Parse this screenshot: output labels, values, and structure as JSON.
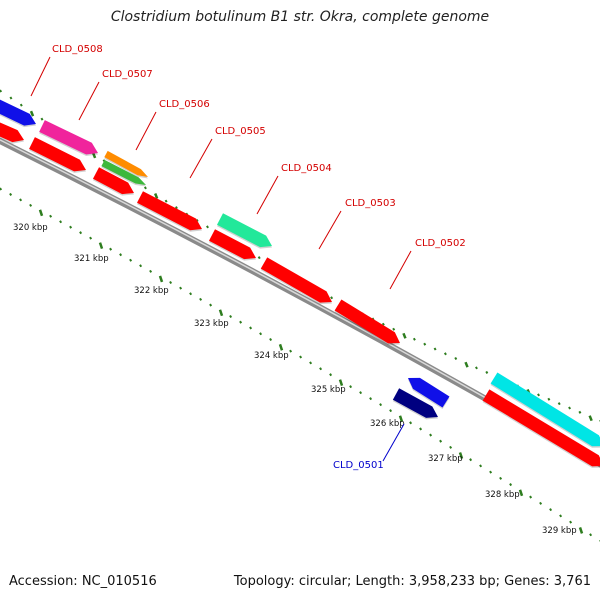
{
  "title": "Clostridium botulinum B1 str. Okra, complete genome",
  "footer": {
    "accession": "Accession: NC_010516",
    "summary": "Topology: circular; Length: 3,958,233 bp; Genes: 3,761"
  },
  "colors": {
    "backbone": "#8a8a8a",
    "tick": "#2e7d1f",
    "label_upper": "#d40000",
    "label_lower": "#0000cc",
    "scale_text": "#111111"
  },
  "scale_ticks": [
    {
      "label": "320 kbp"
    },
    {
      "label": "321 kbp"
    },
    {
      "label": "322 kbp"
    },
    {
      "label": "323 kbp"
    },
    {
      "label": "324 kbp"
    },
    {
      "label": "325 kbp"
    },
    {
      "label": "326 kbp"
    },
    {
      "label": "327 kbp"
    },
    {
      "label": "328 kbp"
    },
    {
      "label": "329 kbp"
    }
  ],
  "gene_labels": [
    {
      "label": "CLD_0508",
      "strand": "forward"
    },
    {
      "label": "CLD_0507",
      "strand": "forward"
    },
    {
      "label": "CLD_0506",
      "strand": "forward"
    },
    {
      "label": "CLD_0505",
      "strand": "forward"
    },
    {
      "label": "CLD_0504",
      "strand": "forward"
    },
    {
      "label": "CLD_0503",
      "strand": "forward"
    },
    {
      "label": "CLD_0502",
      "strand": "forward"
    },
    {
      "label": "CLD_0501",
      "strand": "reverse"
    }
  ],
  "features": [
    {
      "kind": "CDS",
      "color": "#ff0000"
    },
    {
      "kind": "CDS",
      "color": "#ff0000"
    },
    {
      "kind": "CDS",
      "color": "#ff0000"
    },
    {
      "kind": "CDS",
      "color": "#ff0000"
    },
    {
      "kind": "CDS",
      "color": "#ff0000"
    },
    {
      "kind": "CDS",
      "color": "#ff0000"
    },
    {
      "kind": "CDS",
      "color": "#ff0000"
    },
    {
      "kind": "CDS",
      "color": "#ff0000"
    },
    {
      "kind": "blast-hit",
      "color": "#1010e8"
    },
    {
      "kind": "blast-hit",
      "color": "#f0249c"
    },
    {
      "kind": "blast-hit",
      "color": "#ff8c00"
    },
    {
      "kind": "blast-hit",
      "color": "#3cb83c"
    },
    {
      "kind": "blast-hit",
      "color": "#22e89a"
    },
    {
      "kind": "blast-hit",
      "color": "#00e5e5"
    },
    {
      "kind": "blast-hit",
      "color": "#1010e8"
    },
    {
      "kind": "blast-hit",
      "color": "#000080"
    }
  ]
}
